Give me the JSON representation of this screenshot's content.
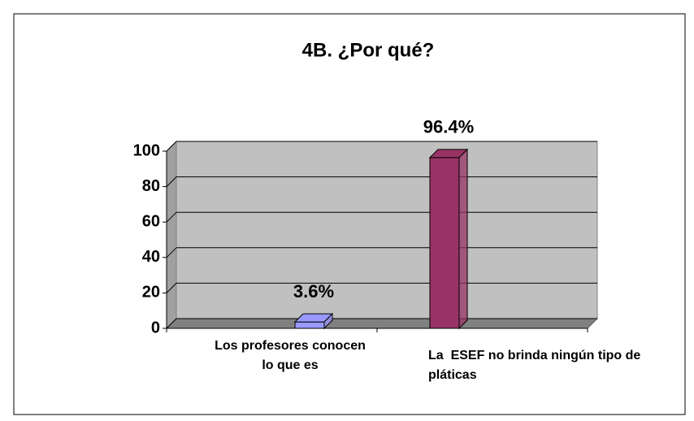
{
  "chart_data": {
    "type": "bar",
    "title": "4B. ¿Por qué?",
    "categories": [
      "Los profesores conocen lo que es",
      "La  ESEF no brinda ningún tipo de pláticas"
    ],
    "values": [
      3.6,
      96.4
    ],
    "value_labels": [
      "3.6%",
      "96.4%"
    ],
    "colors": [
      "#9999ff",
      "#993366"
    ],
    "ylim": [
      0,
      100
    ],
    "yticks": [
      0,
      20,
      40,
      60,
      80,
      100
    ],
    "grid": true
  }
}
